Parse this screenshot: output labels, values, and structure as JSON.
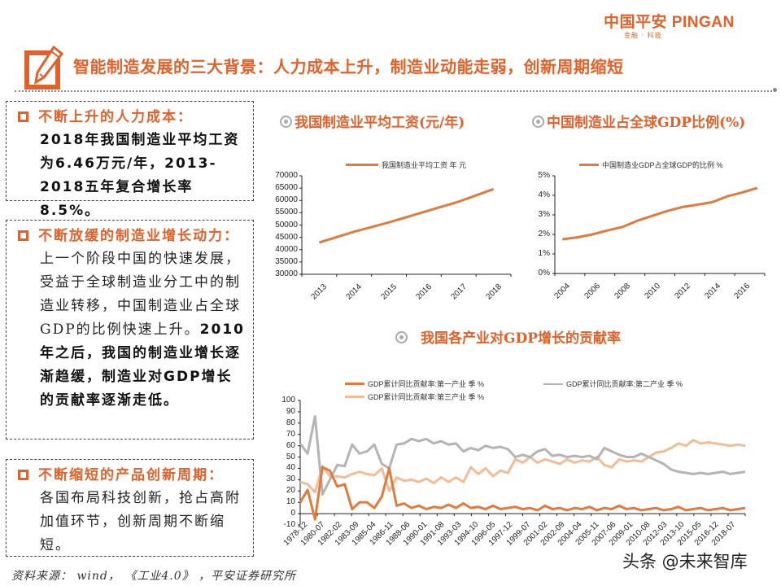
{
  "header": {
    "logo_cn": "中国平安",
    "logo_en": "PINGAN",
    "logo_sub": "金融 · 科技",
    "title": "智能制造发展的三大背景：人力成本上升，制造业动能走弱，创新周期缩短",
    "icon": "pencil-edit-icon"
  },
  "colors": {
    "accent": "#e0622a",
    "primary_series": "#e07b3f",
    "secondary_series": "#b4b4b4",
    "tertiary_series": "#f2bd96"
  },
  "left_panel": {
    "boxes": [
      {
        "heading": "不断上升的人力成本：",
        "body_bold": "2018年我国制造业平均工资为6.46万元/年，2013-2018五年复合增长率8.5%。",
        "body_normal": ""
      },
      {
        "heading": "不断放缓的制造业增长动力：",
        "body_normal": "上一个阶段中国的快速发展，受益于全球制造业分工中的制造业转移，中国制造业占全球GDP的比例快速上升。",
        "body_bold": "2010年之后，我国的制造业增长逐渐趋缓，制造业对GDP增长的贡献率逐渐走低。"
      },
      {
        "heading": "不断缩短的产品创新周期：",
        "body_normal": "各国布局科技创新，抢占高附加值环节，创新周期不断缩短。",
        "body_bold": ""
      }
    ]
  },
  "source": "资料来源： wind， 《工业4.0》 ，平安证券研究所",
  "watermark": "头条 @未来智库",
  "chart_data": [
    {
      "type": "line",
      "title": "我国制造业平均工资(元/年)",
      "legend": [
        "我国制造业平均工资 年 元"
      ],
      "categories": [
        "2013",
        "2014",
        "2015",
        "2016",
        "2017",
        "2018"
      ],
      "series": [
        {
          "name": "我国制造业平均工资 年 元",
          "values": [
            42900,
            47300,
            51100,
            55300,
            59500,
            64600
          ]
        }
      ],
      "yticks": [
        "70000",
        "65000",
        "60000",
        "55000",
        "50000",
        "45000",
        "40000",
        "35000",
        "30000"
      ],
      "ylim": [
        30000,
        70000
      ],
      "xlabel": "",
      "ylabel": "",
      "grid": false,
      "legend_position": "top"
    },
    {
      "type": "line",
      "title": "中国制造业占全球GDP比例(%)",
      "legend": [
        "中国制造业GDP占全球GDP的比例 %"
      ],
      "categories": [
        "2004",
        "2005",
        "2006",
        "2007",
        "2008",
        "2009",
        "2010",
        "2011",
        "2012",
        "2013",
        "2014",
        "2015",
        "2016",
        "2017"
      ],
      "xticks": [
        "2004",
        "2006",
        "2008",
        "2010",
        "2012",
        "2014",
        "2016"
      ],
      "series": [
        {
          "name": "中国制造业GDP占全球GDP的比例 %",
          "values": [
            1.75,
            1.85,
            2.0,
            2.2,
            2.38,
            2.7,
            2.95,
            3.2,
            3.4,
            3.52,
            3.65,
            3.95,
            4.15,
            4.38
          ]
        }
      ],
      "yticks": [
        "5%",
        "4%",
        "3%",
        "2%",
        "1%",
        "0%"
      ],
      "ylim": [
        0,
        5
      ],
      "xlabel": "",
      "ylabel": "",
      "grid": false,
      "legend_position": "top"
    },
    {
      "type": "line",
      "title": "我国各产业对GDP增长的贡献率",
      "legend": [
        "GDP累计同比贡献率:第一产业 季 %",
        "GDP累计同比贡献率:第二产业 季 %",
        "GDP累计同比贡献率:第三产业 季 %"
      ],
      "xticks": [
        "1978-12",
        "1980-07",
        "1982-02",
        "1983-09",
        "1985-04",
        "1986-11",
        "1988-06",
        "1990-01",
        "1991-08",
        "1993-03",
        "1994-10",
        "1996-05",
        "1997-12",
        "1999-07",
        "2001-02",
        "2002-09",
        "2004-04",
        "2005-11",
        "2007-06",
        "2009-01",
        "2010-08",
        "2012-03",
        "2013-10",
        "2015-05",
        "2016-12",
        "2018-07"
      ],
      "yticks": [
        "100",
        "90",
        "80",
        "70",
        "60",
        "50",
        "40",
        "30",
        "20",
        "10",
        "0",
        "-10"
      ],
      "ylim": [
        -10,
        100
      ],
      "series": [
        {
          "name": "GDP累计同比贡献率:第一产业 季 %",
          "values": [
            10,
            21,
            -5,
            41,
            38,
            24,
            26,
            4,
            10,
            10,
            5,
            15,
            40,
            7,
            9,
            5,
            7,
            4,
            6,
            5,
            8,
            5,
            9,
            5,
            6,
            4,
            7,
            4,
            5,
            6,
            4,
            5,
            3,
            7,
            4,
            5,
            3,
            5,
            4,
            6,
            3,
            5,
            4,
            7,
            4,
            5,
            3,
            4,
            5,
            3,
            4,
            6,
            3,
            4,
            5,
            3,
            4,
            5,
            3,
            4,
            5
          ]
        },
        {
          "name": "GDP累计同比贡献率:第二产业 季 %",
          "values": [
            62,
            53,
            86,
            17,
            30,
            43,
            42,
            61,
            53,
            55,
            61,
            44,
            40,
            61,
            62,
            66,
            64,
            66,
            62,
            64,
            61,
            62,
            55,
            58,
            56,
            60,
            58,
            59,
            57,
            50,
            52,
            50,
            55,
            57,
            51,
            52,
            50,
            51,
            50,
            51,
            48,
            58,
            55,
            52,
            50,
            50,
            53,
            50,
            47,
            44,
            39,
            37,
            36,
            35,
            36,
            35,
            36,
            37,
            35,
            36,
            37
          ]
        },
        {
          "name": "GDP累计同比贡献率:第三产业 季 %",
          "values": [
            28,
            26,
            19,
            42,
            33,
            33,
            32,
            35,
            37,
            35,
            34,
            40,
            20,
            32,
            29,
            30,
            28,
            31,
            27,
            32,
            28,
            32,
            28,
            41,
            35,
            40,
            33,
            38,
            36,
            48,
            45,
            50,
            45,
            48,
            46,
            44,
            48,
            45,
            47,
            46,
            50,
            43,
            41,
            48,
            46,
            47,
            46,
            50,
            54,
            55,
            58,
            62,
            60,
            65,
            62,
            63,
            62,
            61,
            60,
            61,
            60
          ]
        }
      ],
      "xlabel": "",
      "ylabel": "",
      "grid": false,
      "legend_position": "top"
    }
  ]
}
